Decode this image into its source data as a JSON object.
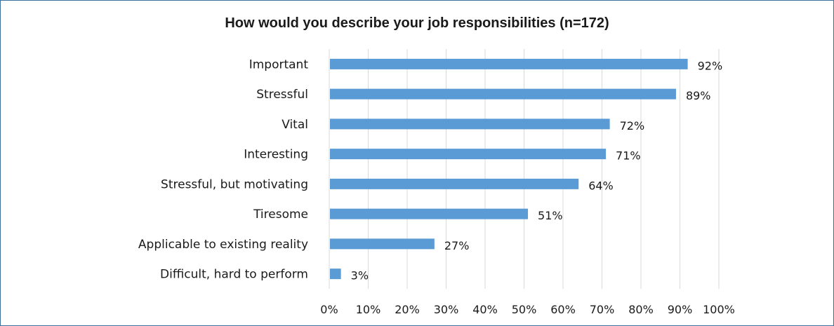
{
  "chart_data": {
    "type": "bar",
    "orientation": "horizontal",
    "title": "How would you describe your job responsibilities (n=172)",
    "categories": [
      "Important",
      "Stressful",
      "Vital",
      "Interesting",
      "Stressful, but motivating",
      "Tiresome",
      "Applicable to existing reality",
      "Difficult, hard to perform"
    ],
    "values": [
      92,
      89,
      72,
      71,
      64,
      51,
      27,
      3
    ],
    "value_labels": [
      "92%",
      "89%",
      "72%",
      "71%",
      "64%",
      "51%",
      "27%",
      "3%"
    ],
    "xlim": [
      0,
      100
    ],
    "x_ticks": [
      "0%",
      "10%",
      "20%",
      "30%",
      "40%",
      "50%",
      "60%",
      "70%",
      "80%",
      "90%",
      "100%"
    ],
    "grid": true,
    "bar_color": "#5b9bd5",
    "border_color": "#3d6f9f"
  }
}
